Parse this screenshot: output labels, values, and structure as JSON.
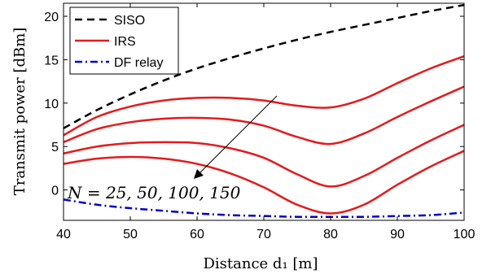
{
  "chart_data": {
    "type": "line",
    "title": "",
    "xlabel": "Distance d₁ [m]",
    "ylabel": "Transmit power [dBm]",
    "xlim": [
      40,
      100
    ],
    "ylim": [
      -3.5,
      21.5
    ],
    "xticks": [
      40,
      50,
      60,
      70,
      80,
      90,
      100
    ],
    "yticks": [
      0,
      5,
      10,
      15,
      20
    ],
    "grid": false,
    "legend_position": "top-left",
    "legend": [
      "SISO",
      "IRS",
      "DF relay"
    ],
    "annotation": "N = 25, 50, 100, 150",
    "series": [
      {
        "name": "SISO",
        "style": "dashed",
        "color": "#000000",
        "x": [
          40,
          45,
          50,
          55,
          60,
          65,
          70,
          75,
          80,
          85,
          90,
          95,
          100
        ],
        "y": [
          7.1,
          9.2,
          11.0,
          12.6,
          14.0,
          15.2,
          16.3,
          17.3,
          18.2,
          19.0,
          19.8,
          20.6,
          21.3
        ]
      },
      {
        "name": "IRS",
        "style": "solid",
        "color": "#e41a1c",
        "x": [
          40,
          45,
          50,
          55,
          60,
          65,
          70,
          75,
          80,
          85,
          90,
          95,
          100
        ],
        "y": [
          6.3,
          8.4,
          9.6,
          10.3,
          10.6,
          10.6,
          10.3,
          9.7,
          9.5,
          10.5,
          12.3,
          14.0,
          15.4
        ]
      },
      {
        "style": "solid",
        "color": "#e41a1c",
        "x": [
          40,
          45,
          50,
          55,
          60,
          65,
          70,
          75,
          80,
          85,
          90,
          95,
          100
        ],
        "y": [
          5.5,
          7.0,
          7.8,
          8.2,
          8.3,
          8.1,
          7.4,
          6.1,
          5.3,
          6.5,
          8.4,
          10.2,
          11.9
        ]
      },
      {
        "style": "solid",
        "color": "#e41a1c",
        "x": [
          40,
          45,
          50,
          55,
          60,
          65,
          70,
          75,
          80,
          85,
          90,
          95,
          100
        ],
        "y": [
          4.2,
          5.0,
          5.4,
          5.5,
          5.4,
          4.8,
          3.7,
          1.8,
          0.4,
          1.6,
          3.7,
          5.7,
          7.5
        ]
      },
      {
        "style": "solid",
        "color": "#e41a1c",
        "x": [
          40,
          45,
          50,
          55,
          60,
          65,
          70,
          75,
          80,
          85,
          90,
          95,
          100
        ],
        "y": [
          3.0,
          3.6,
          3.8,
          3.6,
          3.0,
          1.9,
          0.3,
          -1.7,
          -2.7,
          -1.7,
          0.6,
          2.7,
          4.5
        ]
      },
      {
        "name": "DF relay",
        "style": "dashdot",
        "color": "#0000cc",
        "x": [
          40,
          45,
          50,
          55,
          60,
          65,
          70,
          75,
          80,
          85,
          90,
          95,
          100
        ],
        "y": [
          -1.1,
          -1.7,
          -2.1,
          -2.4,
          -2.7,
          -2.9,
          -3.0,
          -3.1,
          -3.1,
          -3.1,
          -3.0,
          -2.9,
          -2.6
        ]
      }
    ]
  }
}
